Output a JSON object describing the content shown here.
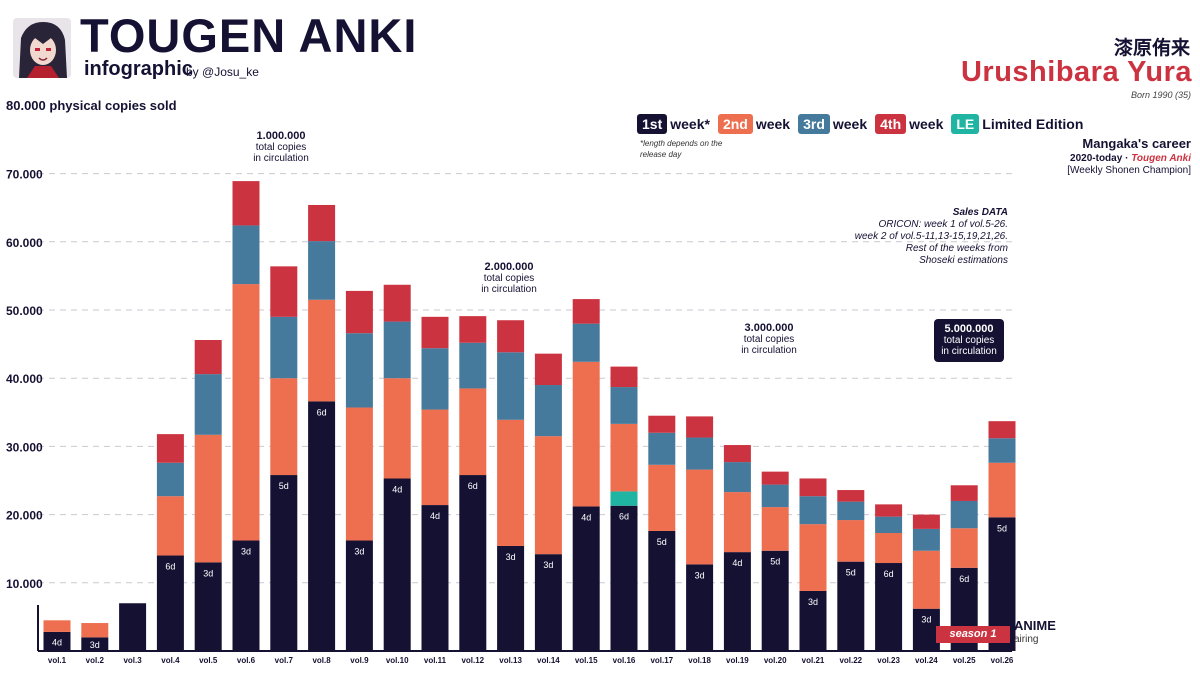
{
  "header": {
    "title": "TOUGEN ANKI",
    "subtitle": "infographic",
    "byline": "by @Josu_ke"
  },
  "author": {
    "kanji": "漆原侑来",
    "name": "Urushibara Yura",
    "born": "Born 1990 (35)",
    "career_heading": "Mangaka's career",
    "career_years": "2020-today ·",
    "career_series": "Tougen Anki",
    "career_magazine": "[Weekly Shonen Champion]"
  },
  "legend": {
    "items": [
      {
        "chip": "1st",
        "label": "week*",
        "color": "#151133"
      },
      {
        "chip": "2nd",
        "label": "week",
        "color": "#ee6e50"
      },
      {
        "chip": "3rd",
        "label": "week",
        "color": "#467a9c"
      },
      {
        "chip": "4th",
        "label": "week",
        "color": "#cc3340"
      },
      {
        "chip": "LE",
        "label": "Limited Edition",
        "color": "#1fb5a2"
      }
    ],
    "note": "*length depends on the release day"
  },
  "sales_note": {
    "heading": "Sales DATA",
    "line1": "ORICON: week 1 of vol.5-26.",
    "line2": "week 2 of vol.5-11,13-15,19,21,26.",
    "line3": "Rest of the weeks from",
    "line4": "Shoseki estimations"
  },
  "circulation": [
    {
      "value": "1.000.000",
      "line1": "total copies",
      "line2": "in circulation"
    },
    {
      "value": "2.000.000",
      "line1": "total copies",
      "line2": "in circulation"
    },
    {
      "value": "3.000.000",
      "line1": "total copies",
      "line2": "in circulation"
    },
    {
      "value": "5.000.000",
      "line1": "total copies",
      "line2": "in circulation"
    }
  ],
  "anime": {
    "label": "ANIME",
    "sub": "airing",
    "season": "season 1"
  },
  "chart_data": {
    "type": "bar",
    "stacked": true,
    "title": "TOUGEN ANKI infographic",
    "ylabel": "80.000 physical copies sold",
    "ylim": [
      0,
      80000
    ],
    "yticks": [
      "10.000",
      "20.000",
      "30.000",
      "40.000",
      "50.000",
      "60.000",
      "70.000"
    ],
    "categories": [
      "vol.1",
      "vol.2",
      "vol.3",
      "vol.4",
      "vol.5",
      "vol.6",
      "vol.7",
      "vol.8",
      "vol.9",
      "vol.10",
      "vol.11",
      "vol.12",
      "vol.13",
      "vol.14",
      "vol.15",
      "vol.16",
      "vol.17",
      "vol.18",
      "vol.19",
      "vol.20",
      "vol.21",
      "vol.22",
      "vol.23",
      "vol.24",
      "vol.25",
      "vol.26"
    ],
    "first_week_days": [
      "4d",
      "3d",
      "",
      "6d",
      "3d",
      "3d",
      "5d",
      "6d",
      "3d",
      "4d",
      "4d",
      "6d",
      "3d",
      "3d",
      "4d",
      "6d",
      "5d",
      "3d",
      "4d",
      "5d",
      "3d",
      "5d",
      "6d",
      "3d",
      "6d",
      "5d"
    ],
    "series": [
      {
        "name": "1st week",
        "color": "#151133",
        "values": [
          2800,
          2000,
          7000,
          14000,
          13000,
          16200,
          25800,
          36600,
          16200,
          25300,
          21400,
          25800,
          15400,
          14200,
          21200,
          21300,
          17600,
          12700,
          14500,
          14700,
          8800,
          13100,
          12900,
          6200,
          12200,
          19600
        ]
      },
      {
        "name": "Limited Edition",
        "color": "#1fb5a2",
        "values": [
          0,
          0,
          0,
          0,
          0,
          0,
          0,
          0,
          0,
          0,
          0,
          0,
          0,
          0,
          0,
          2100,
          0,
          0,
          0,
          0,
          0,
          0,
          0,
          0,
          0,
          0
        ]
      },
      {
        "name": "2nd week",
        "color": "#ee6e50",
        "values": [
          1700,
          2100,
          0,
          8700,
          18700,
          37600,
          14200,
          14900,
          19500,
          14700,
          14000,
          12700,
          18500,
          17300,
          21200,
          9900,
          9700,
          13900,
          8800,
          6400,
          9800,
          6100,
          4400,
          8500,
          5800,
          8000
        ]
      },
      {
        "name": "3rd week",
        "color": "#467a9c",
        "values": [
          0,
          0,
          0,
          4900,
          8900,
          8600,
          9000,
          8600,
          10900,
          8300,
          9000,
          6700,
          9900,
          7500,
          5600,
          5400,
          4700,
          4700,
          4400,
          3300,
          4100,
          2700,
          2400,
          3200,
          4000,
          3600
        ]
      },
      {
        "name": "4th week",
        "color": "#cc3340",
        "values": [
          0,
          0,
          0,
          4200,
          5000,
          6500,
          7400,
          5300,
          6200,
          5400,
          4600,
          3900,
          4700,
          4600,
          3600,
          3000,
          2500,
          3100,
          2500,
          1900,
          2600,
          1700,
          1800,
          2100,
          2300,
          2500
        ]
      }
    ]
  }
}
